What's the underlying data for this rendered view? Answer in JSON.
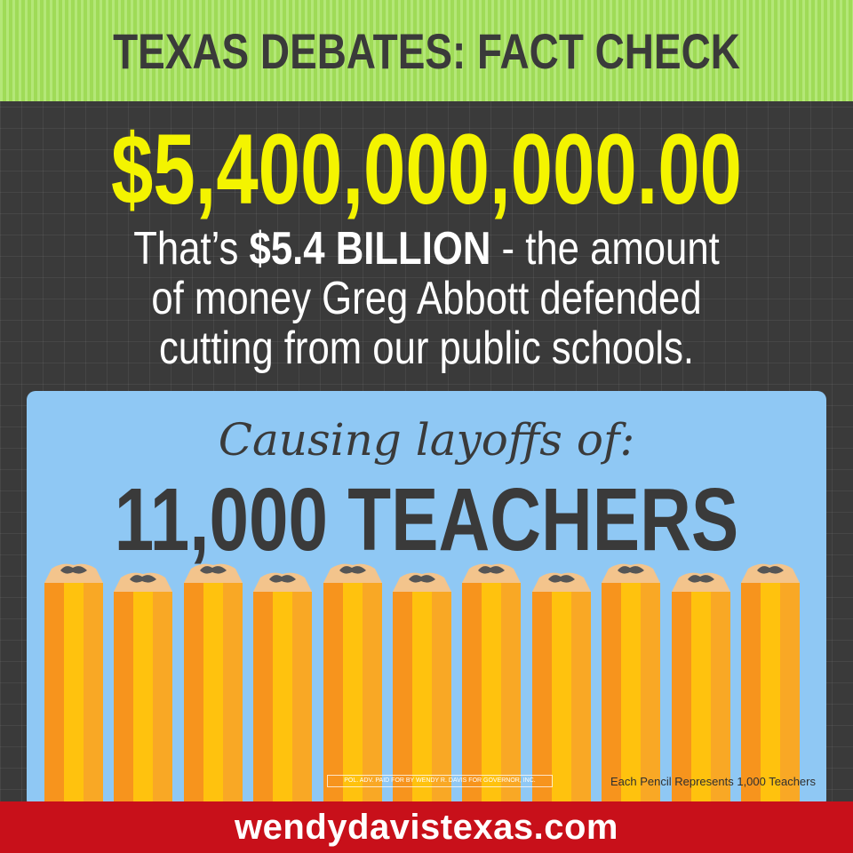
{
  "header": {
    "title": "TEXAS DEBATES: FACT CHECK"
  },
  "headline": {
    "amount": "$5,400,000,000.00",
    "description_line1_pre": "That’s ",
    "description_line1_bold": "$5.4 BILLION",
    "description_line1_post": " - the amount",
    "description_line2": "of money Greg Abbott defended",
    "description_line3": "cutting from our public schools."
  },
  "panel": {
    "script_heading": "Causing layoffs of:",
    "teachers_count": "11,000 TEACHERS",
    "pencil_count": 11,
    "disclaimer": "POL. ADV. PAID FOR BY WENDY R. DAVIS FOR GOVERNOR, INC.",
    "note": "Each Pencil Represents 1,000 Teachers"
  },
  "footer": {
    "url": "wendydavistexas.com"
  },
  "colors": {
    "header_bg": "#a4e25a",
    "amount": "#f4f400",
    "panel_bg": "#8fc8f4",
    "footer_bg": "#c8101a",
    "pencil_orange": "#f7941d",
    "pencil_yellow": "#ffc20e",
    "pencil_wood": "#f3c48c",
    "pencil_graphite": "#555555"
  }
}
